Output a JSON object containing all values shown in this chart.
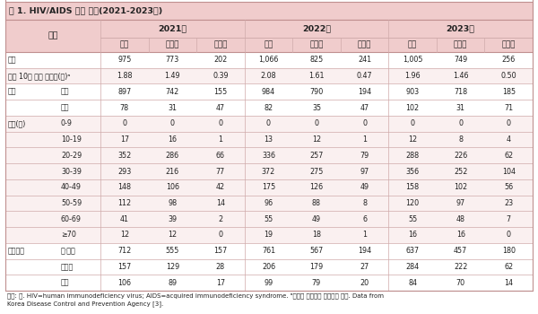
{
  "title": "표 1. HIV/AIDS 신고 현황(2021-2023년)",
  "header_bg": "#e8b4b4",
  "header_bg_light": "#f0cccc",
  "title_bg": "#f0cccc",
  "row_bg_white": "#ffffff",
  "row_bg_pink": "#faf0f0",
  "border_outer": "#c09090",
  "border_inner": "#d0aaaa",
  "text_color": "#222222",
  "years": [
    "2021년",
    "2022년",
    "2023년"
  ],
  "sub_headers": [
    "전체",
    "내국인",
    "외국인"
  ],
  "rows": [
    {
      "cat": "총계",
      "sub": "",
      "vals": [
        "975",
        "773",
        "202",
        "1,066",
        "825",
        "241",
        "1,005",
        "749",
        "256"
      ],
      "shade": "white"
    },
    {
      "cat": "인구 10만 명당 발생률(명)ᵃ",
      "sub": "",
      "vals": [
        "1.88",
        "1.49",
        "0.39",
        "2.08",
        "1.61",
        "0.47",
        "1.96",
        "1.46",
        "0.50"
      ],
      "shade": "pink"
    },
    {
      "cat": "성별",
      "sub": "남자",
      "vals": [
        "897",
        "742",
        "155",
        "984",
        "790",
        "194",
        "903",
        "718",
        "185"
      ],
      "shade": "white"
    },
    {
      "cat": "",
      "sub": "여자",
      "vals": [
        "78",
        "31",
        "47",
        "82",
        "35",
        "47",
        "102",
        "31",
        "71"
      ],
      "shade": "white"
    },
    {
      "cat": "연령(세)",
      "sub": "0-9",
      "vals": [
        "0",
        "0",
        "0",
        "0",
        "0",
        "0",
        "0",
        "0",
        "0"
      ],
      "shade": "pink"
    },
    {
      "cat": "",
      "sub": "10-19",
      "vals": [
        "17",
        "16",
        "1",
        "13",
        "12",
        "1",
        "12",
        "8",
        "4"
      ],
      "shade": "pink"
    },
    {
      "cat": "",
      "sub": "20-29",
      "vals": [
        "352",
        "286",
        "66",
        "336",
        "257",
        "79",
        "288",
        "226",
        "62"
      ],
      "shade": "pink"
    },
    {
      "cat": "",
      "sub": "30-39",
      "vals": [
        "293",
        "216",
        "77",
        "372",
        "275",
        "97",
        "356",
        "252",
        "104"
      ],
      "shade": "pink"
    },
    {
      "cat": "",
      "sub": "40-49",
      "vals": [
        "148",
        "106",
        "42",
        "175",
        "126",
        "49",
        "158",
        "102",
        "56"
      ],
      "shade": "pink"
    },
    {
      "cat": "",
      "sub": "50-59",
      "vals": [
        "112",
        "98",
        "14",
        "96",
        "88",
        "8",
        "120",
        "97",
        "23"
      ],
      "shade": "pink"
    },
    {
      "cat": "",
      "sub": "60-69",
      "vals": [
        "41",
        "39",
        "2",
        "55",
        "49",
        "6",
        "55",
        "48",
        "7"
      ],
      "shade": "pink"
    },
    {
      "cat": "",
      "sub": "≥70",
      "vals": [
        "12",
        "12",
        "0",
        "19",
        "18",
        "1",
        "16",
        "16",
        "0"
      ],
      "shade": "pink"
    },
    {
      "cat": "신고기관",
      "sub": "병·의원",
      "vals": [
        "712",
        "555",
        "157",
        "761",
        "567",
        "194",
        "637",
        "457",
        "180"
      ],
      "shade": "white"
    },
    {
      "cat": "",
      "sub": "보건소",
      "vals": [
        "157",
        "129",
        "28",
        "206",
        "179",
        "27",
        "284",
        "222",
        "62"
      ],
      "shade": "white"
    },
    {
      "cat": "",
      "sub": "기타",
      "vals": [
        "106",
        "89",
        "17",
        "99",
        "79",
        "20",
        "84",
        "70",
        "14"
      ],
      "shade": "white"
    }
  ],
  "footnote_line1": "단위: 명. HIV=human immunodeficiency virus; AIDS=acquired immunodeficiency syndrome. ᵃ통계청 주민등록 연앙인구 기준. Data from",
  "footnote_line2": "Korea Disease Control and Prevention Agency [3]."
}
